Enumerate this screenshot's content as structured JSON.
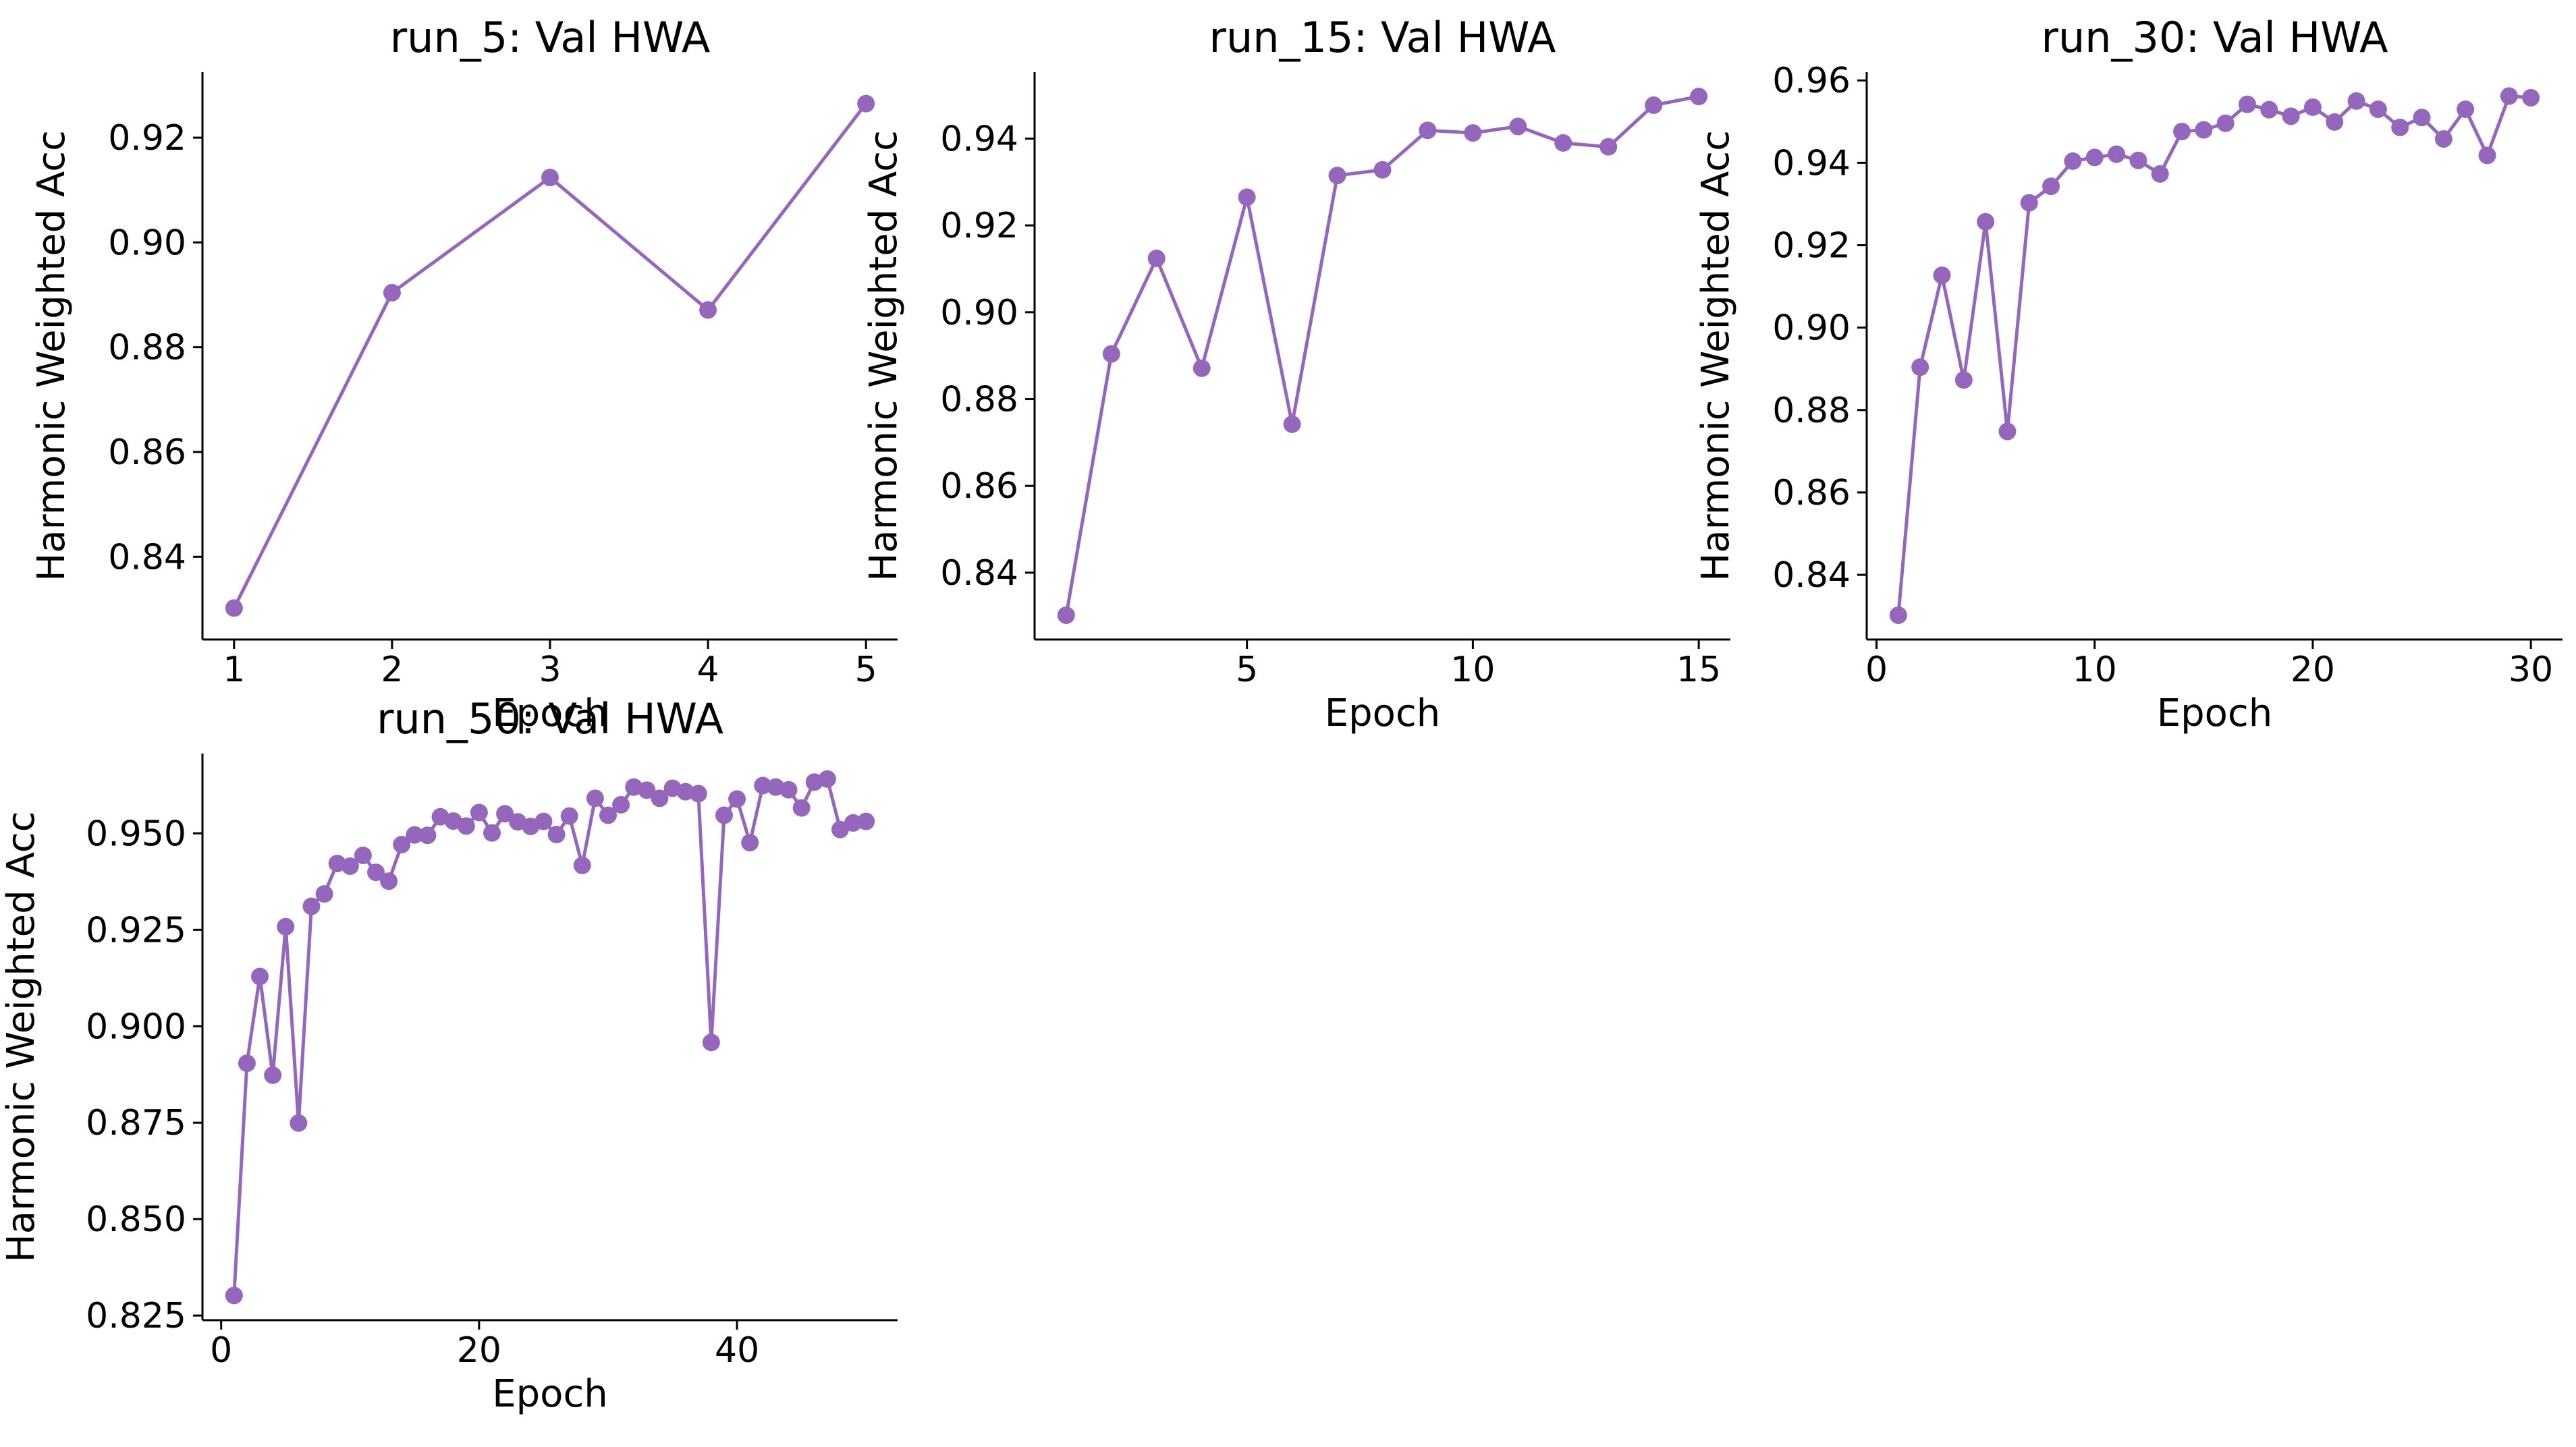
{
  "figure": {
    "series_color": "#9467bd"
  },
  "chart_data": [
    {
      "type": "line",
      "title": "run_5: Val HWA",
      "xlabel": "Epoch",
      "ylabel": "Harmonic Weighted Acc",
      "grid": false,
      "xlim": [
        0.8,
        5.2
      ],
      "ylim": [
        0.8242,
        0.9325
      ],
      "xticks": [
        1,
        2,
        3,
        4,
        5
      ],
      "yticks": [
        0.84,
        0.86,
        0.88,
        0.9,
        0.92
      ],
      "ytick_labels": [
        "0.84",
        "0.86",
        "0.88",
        "0.90",
        "0.92"
      ],
      "x": [
        1,
        2,
        3,
        4,
        5
      ],
      "y": [
        0.8302,
        0.8904,
        0.9124,
        0.8871,
        0.9265
      ]
    },
    {
      "type": "line",
      "title": "run_15: Val HWA",
      "xlabel": "Epoch",
      "ylabel": "Harmonic Weighted Acc",
      "grid": false,
      "xlim": [
        0.3,
        15.7
      ],
      "ylim": [
        0.8246,
        0.9553
      ],
      "xticks": [
        5,
        10,
        15
      ],
      "yticks": [
        0.84,
        0.86,
        0.88,
        0.9,
        0.92,
        0.94
      ],
      "ytick_labels": [
        "0.84",
        "0.86",
        "0.88",
        "0.90",
        "0.92",
        "0.94"
      ],
      "x": [
        1,
        2,
        3,
        4,
        5,
        6,
        7,
        8,
        9,
        10,
        11,
        12,
        13,
        14,
        15
      ],
      "y": [
        0.8302,
        0.8904,
        0.9124,
        0.8871,
        0.9265,
        0.8742,
        0.9315,
        0.9328,
        0.9419,
        0.9413,
        0.9428,
        0.939,
        0.9381,
        0.9477,
        0.9497
      ]
    },
    {
      "type": "line",
      "title": "run_30: Val HWA",
      "xlabel": "Epoch",
      "ylabel": "Harmonic Weighted Acc",
      "grid": false,
      "xlim": [
        -0.45,
        31.45
      ],
      "ylim": [
        0.8243,
        0.962
      ],
      "xticks": [
        0,
        10,
        20,
        30
      ],
      "yticks": [
        0.84,
        0.86,
        0.88,
        0.9,
        0.92,
        0.94,
        0.96
      ],
      "ytick_labels": [
        "0.84",
        "0.86",
        "0.88",
        "0.90",
        "0.92",
        "0.94",
        "0.96"
      ],
      "x": [
        1,
        2,
        3,
        4,
        5,
        6,
        7,
        8,
        9,
        10,
        11,
        12,
        13,
        14,
        15,
        16,
        17,
        18,
        19,
        20,
        21,
        22,
        23,
        24,
        25,
        26,
        27,
        28,
        29,
        30
      ],
      "y": [
        0.8302,
        0.8904,
        0.9127,
        0.8873,
        0.9257,
        0.8748,
        0.9303,
        0.9343,
        0.9404,
        0.9413,
        0.9421,
        0.9406,
        0.9373,
        0.9476,
        0.948,
        0.9496,
        0.9542,
        0.9529,
        0.9513,
        0.9535,
        0.9499,
        0.955,
        0.953,
        0.9486,
        0.951,
        0.9458,
        0.953,
        0.9418,
        0.9562,
        0.9558
      ]
    },
    {
      "type": "line",
      "title": "run_50: Val HWA",
      "xlabel": "Epoch",
      "ylabel": "Harmonic Weighted Acc",
      "grid": false,
      "xlim": [
        -1.45,
        52.45
      ],
      "ylim": [
        0.8238,
        0.9707
      ],
      "xticks": [
        0,
        20,
        40
      ],
      "yticks": [
        0.825,
        0.85,
        0.875,
        0.9,
        0.925,
        0.95
      ],
      "ytick_labels": [
        "0.825",
        "0.850",
        "0.875",
        "0.900",
        "0.925",
        "0.950"
      ],
      "x": [
        1,
        2,
        3,
        4,
        5,
        6,
        7,
        8,
        9,
        10,
        11,
        12,
        13,
        14,
        15,
        16,
        17,
        18,
        19,
        20,
        21,
        22,
        23,
        24,
        25,
        26,
        27,
        28,
        29,
        30,
        31,
        32,
        33,
        34,
        35,
        36,
        37,
        38,
        39,
        40,
        41,
        42,
        43,
        44,
        45,
        46,
        47,
        48,
        49,
        50
      ],
      "y": [
        0.8302,
        0.8904,
        0.9129,
        0.8873,
        0.9258,
        0.8749,
        0.9311,
        0.9343,
        0.9422,
        0.9415,
        0.9443,
        0.9399,
        0.9376,
        0.9471,
        0.9496,
        0.9495,
        0.9543,
        0.9532,
        0.9519,
        0.9554,
        0.9501,
        0.9551,
        0.953,
        0.9518,
        0.9531,
        0.9497,
        0.9545,
        0.9417,
        0.9591,
        0.9547,
        0.9574,
        0.962,
        0.9612,
        0.9591,
        0.9617,
        0.9608,
        0.9603,
        0.8958,
        0.9547,
        0.9589,
        0.9476,
        0.9624,
        0.962,
        0.9613,
        0.9566,
        0.9633,
        0.9641,
        0.951,
        0.9527,
        0.9531
      ]
    }
  ]
}
